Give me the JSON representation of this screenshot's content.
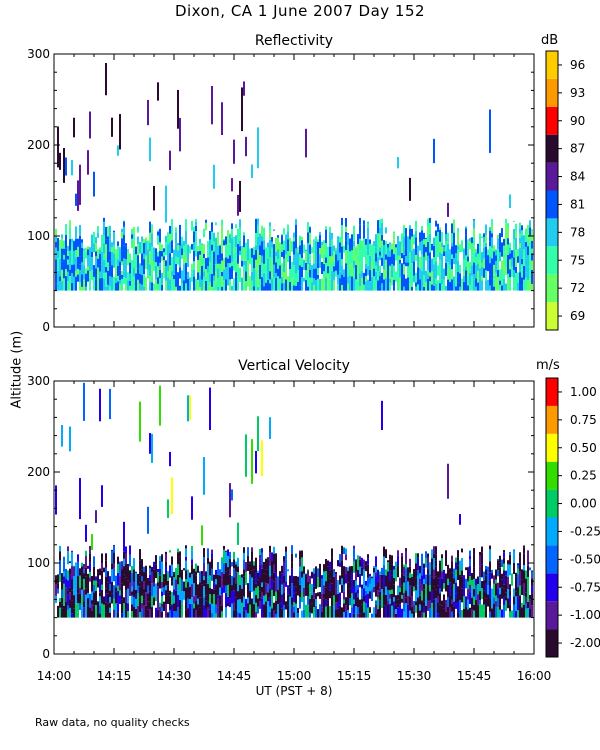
{
  "figure": {
    "title": "Dixon, CA  1 June 2007  Day 152",
    "ylabel": "Altitude (m)",
    "xlabel": "UT  (PST + 8)",
    "footnote": "Raw data, no quality checks"
  },
  "chart_data": [
    {
      "type": "heatmap",
      "title": "Reflectivity",
      "xlabel": "UT  (PST + 8)",
      "ylabel": "Altitude (m)",
      "x_range": [
        "14:00",
        "16:00"
      ],
      "x_ticks": [
        "14:00",
        "14:15",
        "14:30",
        "14:45",
        "15:00",
        "15:15",
        "15:30",
        "15:45",
        "16:00"
      ],
      "ylim": [
        0,
        300
      ],
      "y_ticks": [
        0,
        100,
        200,
        300
      ],
      "colorbar": {
        "unit": "dB",
        "labels": [
          "69",
          "72",
          "75",
          "78",
          "81",
          "84",
          "87",
          "90",
          "93",
          "96"
        ],
        "colors": [
          "#ccff33",
          "#66ff66",
          "#33ffaa",
          "#22ccee",
          "#0055ff",
          "#5a189a",
          "#2a0a2e",
          "#ff0000",
          "#ff9900",
          "#ffcc00"
        ]
      }
    },
    {
      "type": "heatmap",
      "title": "Vertical Velocity",
      "xlabel": "UT  (PST + 8)",
      "ylabel": "Altitude (m)",
      "x_range": [
        "14:00",
        "16:00"
      ],
      "x_ticks": [
        "14:00",
        "14:15",
        "14:30",
        "14:45",
        "15:00",
        "15:15",
        "15:30",
        "15:45",
        "16:00"
      ],
      "ylim": [
        0,
        300
      ],
      "y_ticks": [
        0,
        100,
        200,
        300
      ],
      "colorbar": {
        "unit": "m/s",
        "labels": [
          "-2.00",
          "-1.00",
          "-0.75",
          "-0.50",
          "-0.25",
          "0.00",
          "0.25",
          "0.50",
          "0.75",
          "1.00"
        ],
        "colors": [
          "#2a0a2e",
          "#5a189a",
          "#2200ee",
          "#0066ff",
          "#00aaff",
          "#00cc66",
          "#33dd00",
          "#ffff00",
          "#ff9900",
          "#ff0000"
        ]
      }
    }
  ]
}
